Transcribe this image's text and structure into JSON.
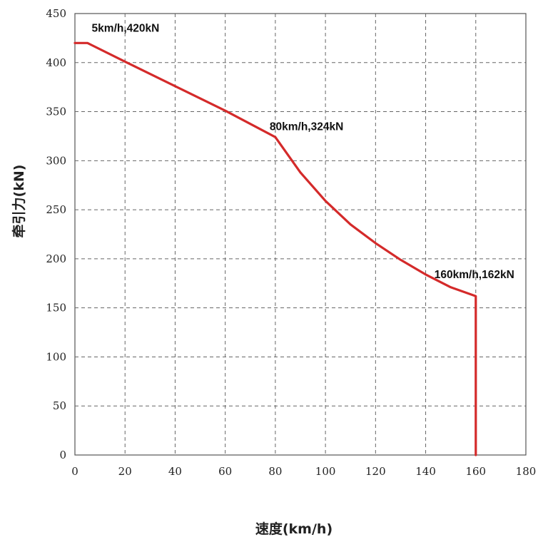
{
  "chart_data": {
    "type": "line",
    "title": "",
    "xlabel": "速度(km/h)",
    "ylabel": "牵引力(kN)",
    "xlim": [
      0,
      180
    ],
    "ylim": [
      0,
      450
    ],
    "xticks": [
      0,
      20,
      40,
      60,
      80,
      100,
      120,
      140,
      160,
      180
    ],
    "yticks": [
      0,
      50,
      100,
      150,
      200,
      250,
      300,
      350,
      400,
      450
    ],
    "grid": true,
    "legend": "none",
    "series": [
      {
        "color": "#d42a2a",
        "x": [
          0,
          5,
          20,
          40,
          60,
          80,
          90,
          100,
          110,
          120,
          130,
          140,
          150,
          160,
          160
        ],
        "y": [
          420,
          420,
          401,
          376,
          351,
          324,
          288,
          259,
          235,
          216,
          199,
          184,
          171,
          162,
          0
        ]
      }
    ],
    "annotations": [
      {
        "text": "5km/h,420kN",
        "x": 5,
        "y": 420
      },
      {
        "text": "80km/h,324kN",
        "x": 80,
        "y": 324
      },
      {
        "text": "160km/h,162kN",
        "x": 160,
        "y": 162
      }
    ]
  }
}
